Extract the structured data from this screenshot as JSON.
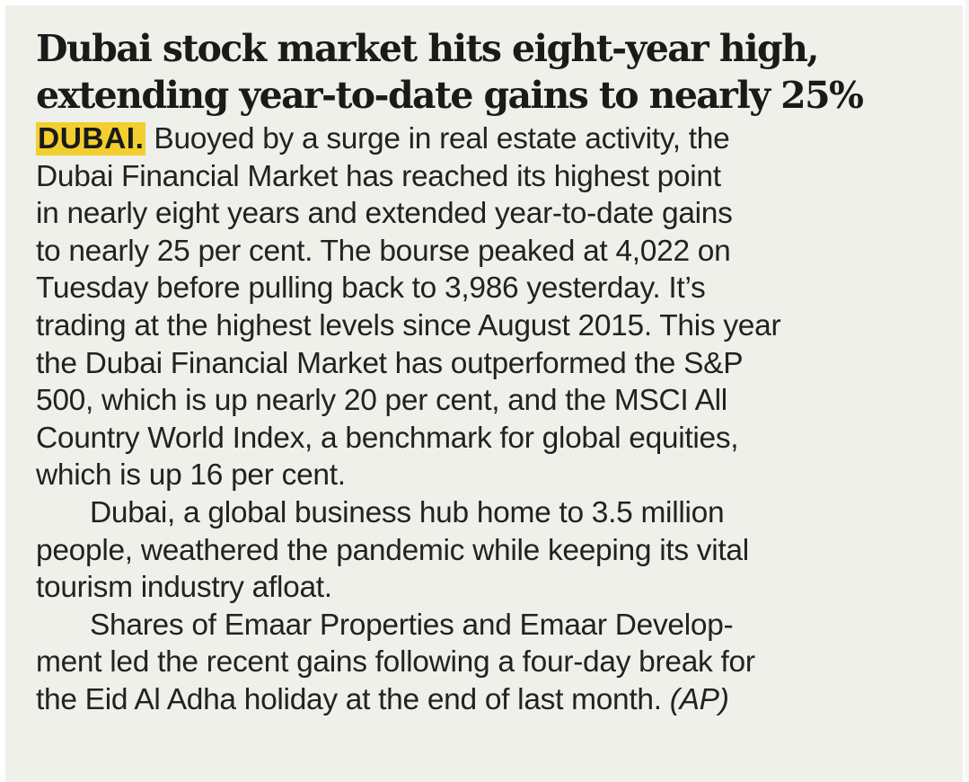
{
  "headline": {
    "line1": "Dubai stock market hits eight-year high,",
    "line2": "extending year-to-date gains to nearly 25%"
  },
  "dateline": "DUBAI.",
  "paragraph1": {
    "line1": " Buoyed by a surge in real estate activity, the",
    "line2": "Dubai Financial Market has reached its highest point",
    "line3": "in nearly eight years and extended year-to-date gains",
    "line4": "to nearly 25 per cent. The bourse peaked at 4,022 on",
    "line5": "Tuesday before pulling back to 3,986 yesterday. It’s",
    "line6": "trading at the highest levels since August 2015. This year",
    "line7": "the Dubai Financial Market has outperformed the S&P",
    "line8": "500, which is up nearly 20 per cent, and the MSCI All",
    "line9": "Country World Index, a benchmark for global equities,",
    "line10": "which is up 16 per cent."
  },
  "paragraph2": {
    "line1": "Dubai, a global business hub home to 3.5 million",
    "line2": "people, weathered the pandemic while keeping its vital",
    "line3": "tourism industry afloat."
  },
  "paragraph3": {
    "line1": "Shares of Emaar Properties and Emaar Develop-",
    "line2": "ment led the recent gains following a four-day break for",
    "line3": "the Eid Al Adha holiday at the end of last month. "
  },
  "credit": "(AP)",
  "colors": {
    "background": "#eef0e9",
    "dateline_highlight": "#f2cf2e",
    "text": "#222222"
  }
}
